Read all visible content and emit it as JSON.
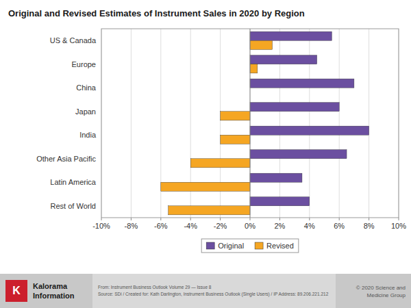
{
  "chart_data": {
    "type": "bar",
    "orientation": "horizontal",
    "title": "Original and Revised Estimates of Instrument Sales in 2020 by Region",
    "categories": [
      "US & Canada",
      "Europe",
      "China",
      "Japan",
      "India",
      "Other Asia Pacific",
      "Latin America",
      "Rest of World"
    ],
    "series": [
      {
        "name": "Original",
        "color": "#6B4FA0",
        "values": [
          5.5,
          4.5,
          7.0,
          6.0,
          8.0,
          6.5,
          3.5,
          4.0
        ]
      },
      {
        "name": "Revised",
        "color": "#F5A623",
        "values": [
          1.5,
          0.5,
          0.0,
          -2.0,
          -2.0,
          -4.0,
          -6.0,
          -5.5
        ]
      }
    ],
    "xlim": [
      -10,
      10
    ],
    "xticks": [
      {
        "value": -10,
        "label": "-10%"
      },
      {
        "value": -8,
        "label": "-8%"
      },
      {
        "value": -6,
        "label": "-6%"
      },
      {
        "value": -4,
        "label": "-4%"
      },
      {
        "value": -2,
        "label": "-2%"
      },
      {
        "value": 0,
        "label": "0%"
      },
      {
        "value": 2,
        "label": "2%"
      },
      {
        "value": 4,
        "label": "4%"
      },
      {
        "value": 6,
        "label": "6%"
      },
      {
        "value": 8,
        "label": "8%"
      },
      {
        "value": 10,
        "label": "10%"
      }
    ],
    "grid": true,
    "legend": "bottom",
    "annotations": [
      "K",
      "Kalorama",
      "Information",
      "From: Instrument Business Outlook Volume 29 — Issue 8\nSource: SDi / Created for: Kath Darlington, Instrument Business Outlook (Single Users) / IP Address: 89.206.221.212",
      "© 2020 Science and\nMedicine Group"
    ]
  }
}
